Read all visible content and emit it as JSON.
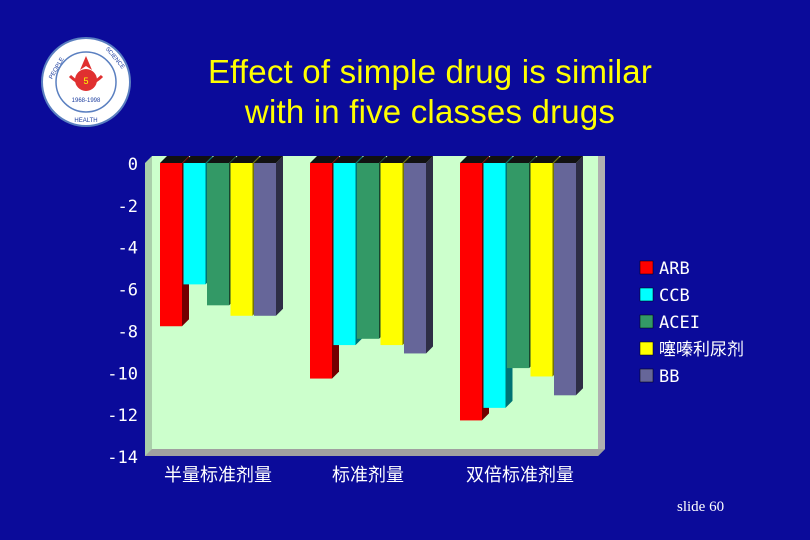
{
  "title": {
    "line1": "Effect of simple drug is similar",
    "line2": "with in five classes drugs"
  },
  "footer": "slide 60",
  "logo": {
    "icon": "people-science-health-seal",
    "left_text": "PEOPLE",
    "right_text": "SCIENCE",
    "bottom_text": "HEALTH",
    "years": "1968-1998"
  },
  "chart_data": {
    "type": "bar",
    "categories": [
      "半量标准剂量",
      "标准剂量",
      "双倍标准剂量"
    ],
    "series": [
      {
        "name": "ARB",
        "color": "#ff0000",
        "values": [
          -7.8,
          -10.3,
          -12.3
        ]
      },
      {
        "name": "CCB",
        "color": "#00ffff",
        "values": [
          -5.8,
          -8.7,
          -11.7
        ]
      },
      {
        "name": "ACEI",
        "color": "#339966",
        "values": [
          -6.8,
          -8.4,
          -9.8
        ]
      },
      {
        "name": "噻嗪利尿剂",
        "color": "#ffff00",
        "values": [
          -7.3,
          -8.7,
          -10.2
        ]
      },
      {
        "name": "BB",
        "color": "#666699",
        "values": [
          -7.3,
          -9.1,
          -11.1
        ]
      }
    ],
    "ylim": [
      -14,
      0
    ],
    "yticks": [
      "0",
      "-2",
      "-4",
      "-6",
      "-8",
      "-10",
      "-12",
      "-14"
    ],
    "grid": false,
    "legend": "right",
    "plot_color": "#ccffcc"
  }
}
